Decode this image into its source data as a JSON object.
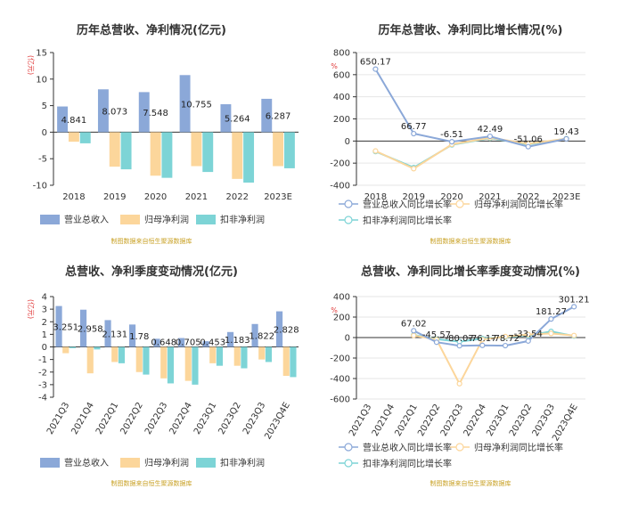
{
  "colors": {
    "revenue": "#8ba8d8",
    "net_profit": "#fcd69b",
    "deducted_profit": "#7dd4d6",
    "source_text": "#c9a227"
  },
  "source": "制图数据来自恒生聚源数据库",
  "chart_data": [
    {
      "id": "annual-amount",
      "type": "bar",
      "title": "历年总营收、净利情况(亿元)",
      "ylabel": "亿元",
      "categories": [
        "2018",
        "2019",
        "2020",
        "2021",
        "2022",
        "2023E"
      ],
      "ylim": [
        -10,
        15
      ],
      "yticks": [
        "15",
        "10",
        "5",
        "0",
        "-5",
        "-10"
      ],
      "yticks_values": [
        15,
        10,
        5,
        0,
        -5,
        -10
      ],
      "series": [
        {
          "name": "营业总收入",
          "color_key": "revenue",
          "values": [
            4.841,
            8.073,
            7.548,
            10.755,
            5.264,
            6.287
          ],
          "labels": [
            "4.841",
            "8.073",
            "7.548",
            "10.755",
            "5.264",
            "6.287"
          ]
        },
        {
          "name": "归母净利润",
          "color_key": "net_profit",
          "values": [
            -1.8,
            -6.5,
            -8.2,
            -6.4,
            -8.8,
            -6.4
          ]
        },
        {
          "name": "扣非净利润",
          "color_key": "deducted_profit",
          "values": [
            -2.1,
            -7.0,
            -8.6,
            -7.5,
            -9.5,
            -6.8
          ]
        }
      ]
    },
    {
      "id": "annual-growth",
      "type": "line",
      "title": "历年总营收、净利同比增长情况(%)",
      "ylabel": "%",
      "categories": [
        "2018",
        "2019",
        "2020",
        "2021",
        "2022",
        "2023E"
      ],
      "ylim": [
        -400,
        800
      ],
      "yticks": [
        "800",
        "600",
        "400",
        "200",
        "0",
        "-200",
        "-400"
      ],
      "yticks_values": [
        800,
        600,
        400,
        200,
        0,
        -200,
        -400
      ],
      "series": [
        {
          "name": "营业总收入同比增长率",
          "color_key": "revenue",
          "values": [
            650.17,
            66.77,
            -6.51,
            42.49,
            -51.06,
            19.43
          ],
          "labels": [
            "650.17",
            "66.77",
            "-6.51",
            "42.49",
            "-51.06",
            "19.43"
          ]
        },
        {
          "name": "归母净利润同比增长率",
          "color_key": "net_profit",
          "values": [
            -90,
            -250,
            -30,
            30,
            -25,
            20
          ]
        },
        {
          "name": "扣非净利润同比增长率",
          "color_key": "deducted_profit",
          "values": [
            -95,
            -240,
            -35,
            25,
            -30,
            22
          ]
        }
      ]
    },
    {
      "id": "quarterly-amount",
      "type": "bar",
      "title": "总营收、净利季度变动情况(亿元)",
      "ylabel": "亿元",
      "categories": [
        "2021Q3",
        "2021Q4",
        "2022Q1",
        "2022Q2",
        "2022Q3",
        "2022Q4",
        "2023Q1",
        "2023Q2",
        "2023Q3",
        "2023Q4E"
      ],
      "ylim": [
        -4,
        4
      ],
      "yticks": [
        "4",
        "3",
        "2",
        "1",
        "0",
        "-1",
        "-2",
        "-3",
        "-4"
      ],
      "yticks_values": [
        4,
        3,
        2,
        1,
        0,
        -1,
        -2,
        -3,
        -4
      ],
      "series": [
        {
          "name": "营业总收入",
          "color_key": "revenue",
          "values": [
            3.251,
            2.958,
            2.131,
            1.78,
            0.648,
            0.705,
            0.453,
            1.183,
            1.822,
            2.828
          ],
          "labels": [
            "3.251",
            "2.958",
            "2.131",
            "1.78",
            "0.648",
            "0.705",
            "0.453",
            "1.183",
            "1.822",
            "2.828"
          ]
        },
        {
          "name": "归母净利润",
          "color_key": "net_profit",
          "values": [
            -0.5,
            -2.1,
            -1.2,
            -2.0,
            -2.5,
            -2.7,
            -1.3,
            -1.5,
            -1.0,
            -2.3
          ]
        },
        {
          "name": "扣非净利润",
          "color_key": "deducted_profit",
          "values": [
            -0.1,
            -0.2,
            -1.3,
            -2.2,
            -2.9,
            -3.0,
            -1.5,
            -1.7,
            -1.2,
            -2.4
          ]
        }
      ]
    },
    {
      "id": "quarterly-growth",
      "type": "line",
      "title": "总营收、净利同比增长率季度变动情况(%)",
      "ylabel": "%",
      "categories": [
        "2021Q3",
        "2021Q4",
        "2022Q1",
        "2022Q2",
        "2022Q3",
        "2022Q4",
        "2023Q1",
        "2023Q2",
        "2023Q3",
        "2023Q4E"
      ],
      "ylim": [
        -600,
        400
      ],
      "yticks": [
        "400",
        "200",
        "0",
        "-200",
        "-400",
        "-600"
      ],
      "yticks_values": [
        400,
        200,
        0,
        -200,
        -400,
        -600
      ],
      "series": [
        {
          "name": "营业总收入同比增长率",
          "color_key": "revenue",
          "values": [
            null,
            null,
            67.02,
            -45.57,
            -80.07,
            -76.17,
            -78.72,
            -33.54,
            181.27,
            301.21
          ],
          "labels": [
            null,
            null,
            "67.02",
            "-45.57",
            "-80.07",
            "-76.17",
            "-78.72",
            "-33.54",
            "181.27",
            "301.21"
          ]
        },
        {
          "name": "归母净利润同比增长率",
          "color_key": "net_profit",
          "values": [
            null,
            null,
            20,
            -20,
            -450,
            -20,
            10,
            30,
            40,
            20
          ]
        },
        {
          "name": "扣非净利润同比增长率",
          "color_key": "deducted_profit",
          "values": [
            null,
            null,
            25,
            -15,
            -40,
            -10,
            5,
            20,
            60,
            15
          ]
        }
      ]
    }
  ]
}
